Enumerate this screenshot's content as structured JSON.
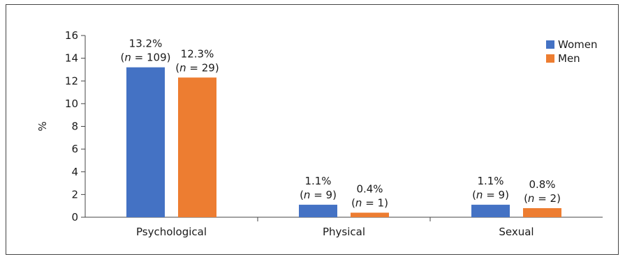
{
  "chart_data": {
    "type": "bar",
    "ylabel": "%",
    "ylim": [
      0,
      16
    ],
    "yticks": [
      0,
      2,
      4,
      6,
      8,
      10,
      12,
      14,
      16
    ],
    "categories": [
      "Psychological",
      "Physical",
      "Sexual"
    ],
    "series": [
      {
        "name": "Women",
        "color": "#4472c4",
        "values": [
          13.2,
          1.1,
          1.1
        ],
        "labels": [
          {
            "pct": "13.2%",
            "n_prefix": "(",
            "n_var": "n",
            "n_rest": " = 109)"
          },
          {
            "pct": "1.1%",
            "n_prefix": "(",
            "n_var": "n",
            "n_rest": " = 9)"
          },
          {
            "pct": "1.1%",
            "n_prefix": "(",
            "n_var": "n",
            "n_rest": " = 9)"
          }
        ]
      },
      {
        "name": "Men",
        "color": "#ed7d31",
        "values": [
          12.3,
          0.4,
          0.8
        ],
        "labels": [
          {
            "pct": "12.3%",
            "n_prefix": "(",
            "n_var": "n",
            "n_rest": " = 29)"
          },
          {
            "pct": "0.4%",
            "n_prefix": "(",
            "n_var": "n",
            "n_rest": " = 1)"
          },
          {
            "pct": "0.8%",
            "n_prefix": "(",
            "n_var": "n",
            "n_rest": " = 2)"
          }
        ]
      }
    ],
    "legend": {
      "position": "top-right"
    },
    "grid": false
  }
}
